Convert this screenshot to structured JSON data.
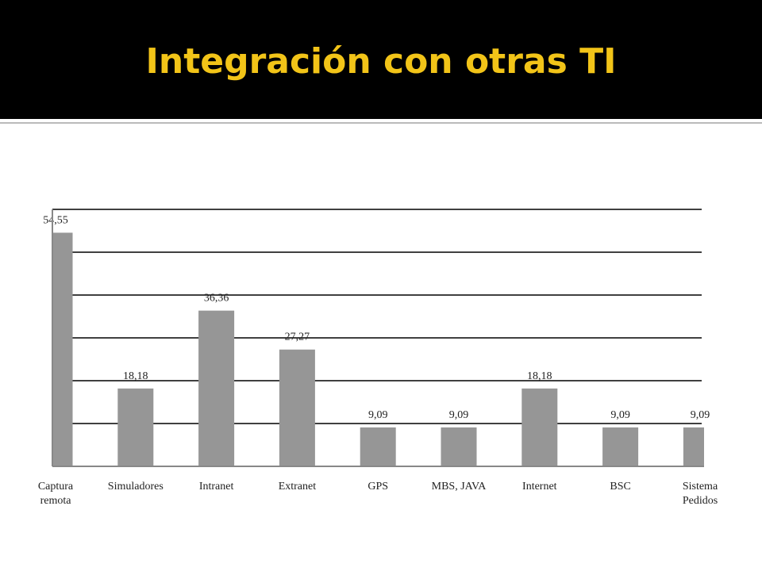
{
  "chart_data": {
    "type": "bar",
    "title": "Integración con otras TI",
    "categories": [
      [
        "Captura",
        "remota"
      ],
      [
        "Simuladores"
      ],
      [
        "Intranet"
      ],
      [
        "Extranet"
      ],
      [
        "GPS"
      ],
      [
        "MBS, JAVA"
      ],
      [
        "Internet"
      ],
      [
        "BSC"
      ],
      [
        "Sistema",
        "Pedidos"
      ]
    ],
    "values": [
      54.55,
      18.18,
      36.36,
      27.27,
      9.09,
      9.09,
      18.18,
      9.09,
      9.09
    ],
    "value_labels": [
      "54,55",
      "18,18",
      "36,36",
      "27,27",
      "9,09",
      "9,09",
      "18,18",
      "9,09",
      "9,09"
    ],
    "color": "#969696",
    "ylim": [
      0,
      60
    ],
    "yticks": [
      10,
      20,
      30,
      40,
      50,
      60
    ],
    "grid": true
  }
}
